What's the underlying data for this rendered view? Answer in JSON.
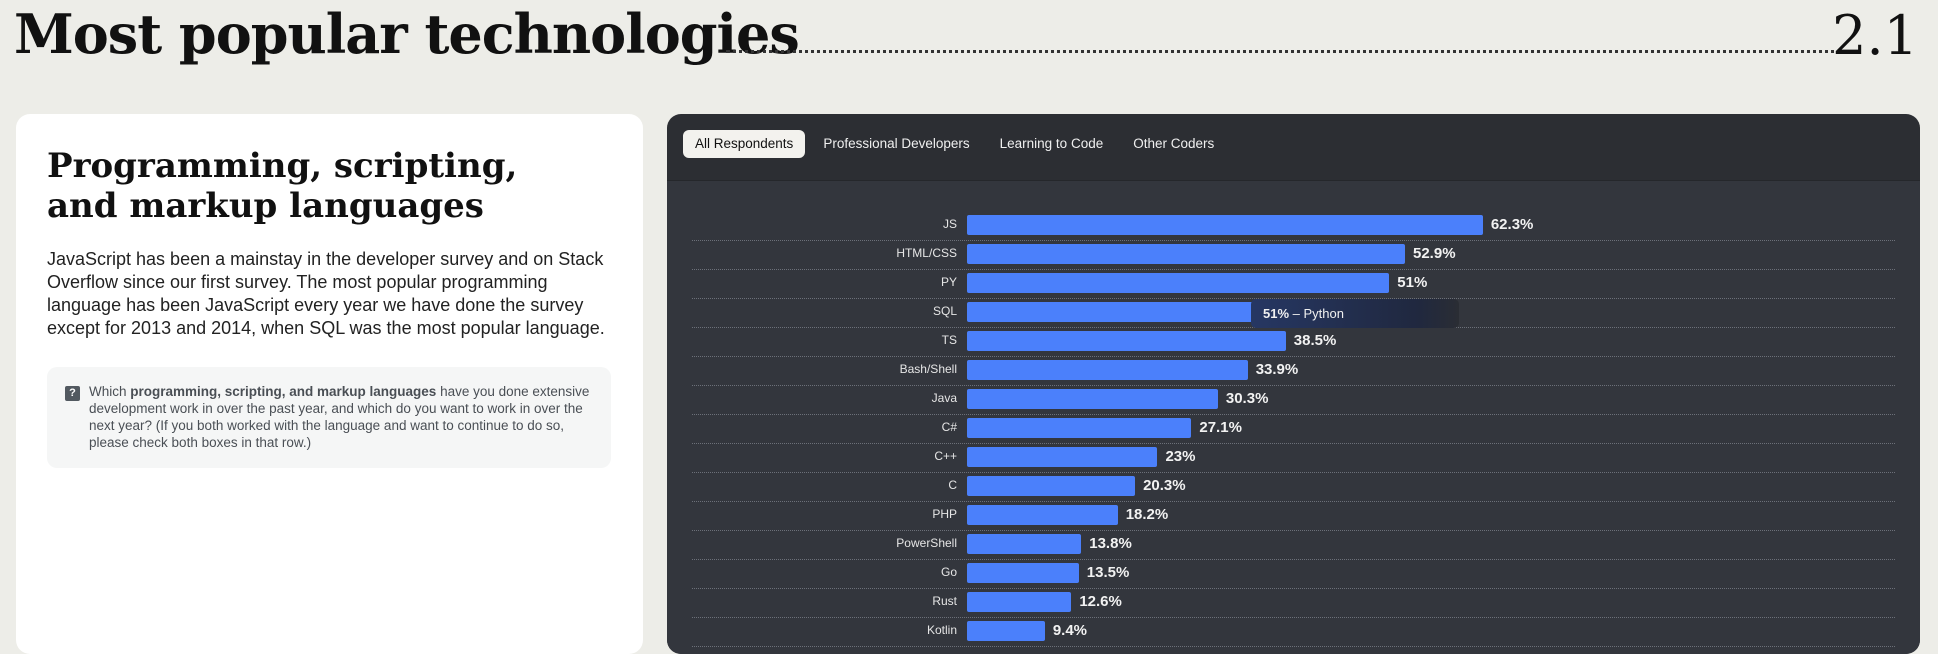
{
  "header": {
    "title": "Most popular technologies",
    "section_number": "2.1"
  },
  "card": {
    "heading": "Programming, scripting, and markup languages",
    "description": "JavaScript has been a mainstay in the developer survey and on Stack Overflow since our first survey. The most popular programming language has been JavaScript every year we have done the survey except for 2013 and 2014, when SQL was the most popular language.",
    "question": {
      "icon": "question-icon",
      "prefix": "Which ",
      "bold": "programming, scripting, and markup languages",
      "suffix": " have you done extensive development work in over the past year, and which do you want to work in over the next year? (If you both worked with the language and want to continue to do so, please check both boxes in that row.)"
    }
  },
  "tabs": [
    {
      "label": "All Respondents",
      "active": true
    },
    {
      "label": "Professional Developers"
    },
    {
      "label": "Learning to Code"
    },
    {
      "label": "Other Coders"
    }
  ],
  "tooltip": {
    "value": "51%",
    "label": " – Python"
  },
  "colors": {
    "bar": "#4b80fb",
    "panel": "#2c2e33"
  },
  "chart_data": {
    "type": "bar",
    "orientation": "horizontal",
    "unit": "%",
    "categories": [
      "JS",
      "HTML/CSS",
      "PY",
      "SQL",
      "TS",
      "Bash/Shell",
      "Java",
      "C#",
      "C++",
      "C",
      "PHP",
      "PowerShell",
      "Go",
      "Rust",
      "Kotlin"
    ],
    "values": [
      62.3,
      52.9,
      51,
      51,
      38.5,
      33.9,
      30.3,
      27.1,
      23,
      20.3,
      18.2,
      13.8,
      13.5,
      12.6,
      9.4
    ],
    "labels": [
      "62.3%",
      "52.9%",
      "51%",
      "51%",
      "38.5%",
      "33.9%",
      "30.3%",
      "27.1%",
      "23%",
      "20.3%",
      "18.2%",
      "13.8%",
      "13.5%",
      "12.6%",
      "9.4%"
    ]
  }
}
